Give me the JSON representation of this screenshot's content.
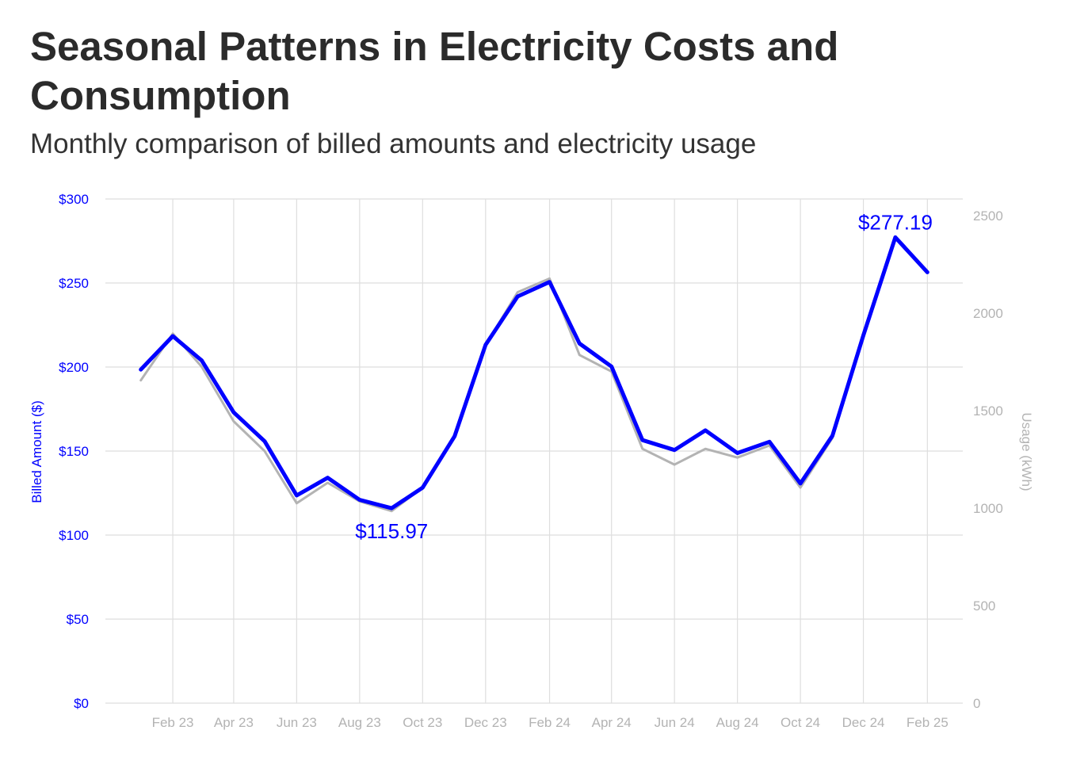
{
  "title": "Seasonal Patterns in Electricity Costs and Consumption",
  "subtitle": "Monthly comparison of billed amounts and electricity usage",
  "chart_data": {
    "type": "line",
    "title": "Seasonal Patterns in Electricity Costs and Consumption",
    "subtitle": "Monthly comparison of billed amounts and electricity usage",
    "x": [
      "2023-01",
      "2023-02",
      "2023-03",
      "2023-04",
      "2023-05",
      "2023-06",
      "2023-07",
      "2023-08",
      "2023-09",
      "2023-10",
      "2023-11",
      "2023-12",
      "2024-01",
      "2024-02",
      "2024-03",
      "2024-04",
      "2024-05",
      "2024-06",
      "2024-07",
      "2024-08",
      "2024-09",
      "2024-10",
      "2024-11",
      "2024-12",
      "2025-01",
      "2025-02"
    ],
    "x_tick_labels": [
      "Feb 23",
      "Apr 23",
      "Jun 23",
      "Aug 23",
      "Oct 23",
      "Dec 23",
      "Feb 24",
      "Apr 24",
      "Jun 24",
      "Aug 24",
      "Oct 24",
      "Dec 24",
      "Feb 25"
    ],
    "y_left": {
      "label": "Billed Amount ($)",
      "range": [
        0,
        300
      ],
      "ticks": [
        "$0",
        "$50",
        "$100",
        "$150",
        "$200",
        "$250",
        "$300"
      ],
      "color": "#0000ff"
    },
    "y_right": {
      "label": "Usage (kWh)",
      "range": [
        0,
        2585
      ],
      "ticks": [
        "0",
        "500",
        "1000",
        "1500",
        "2000",
        "2500"
      ],
      "color": "#b3b3b3"
    },
    "series": [
      {
        "axis": "left",
        "color": "#0000ff",
        "values": [
          198.5,
          218.4,
          203.9,
          173.0,
          155.8,
          123.6,
          134.1,
          121.0,
          115.97,
          128.2,
          158.8,
          213.2,
          242.0,
          250.6,
          214.0,
          200.3,
          156.5,
          150.6,
          162.3,
          148.8,
          155.5,
          130.7,
          159.1,
          218.9,
          277.19,
          256.4
        ]
      },
      {
        "axis": "right",
        "color": "#b3b3b3",
        "values": [
          1655,
          1895,
          1725,
          1445,
          1292,
          1025,
          1130,
          1035,
          985,
          1105,
          1370,
          1835,
          2107,
          2177,
          1785,
          1700,
          1304,
          1223,
          1304,
          1259,
          1321,
          1105,
          1360,
          1880,
          2389,
          2209
        ]
      }
    ],
    "annotations": [
      {
        "text": "$115.97",
        "x": "2023-09",
        "y": 115.97,
        "position": "below"
      },
      {
        "text": "$277.19",
        "x": "2025-01",
        "y": 277.19,
        "position": "above"
      }
    ],
    "grid": true
  }
}
